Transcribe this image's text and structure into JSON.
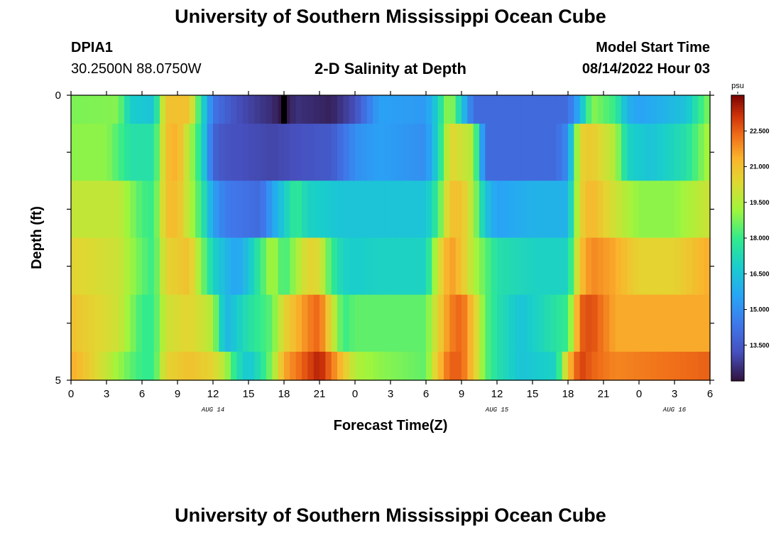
{
  "header": {
    "title": "University of Southern Mississippi Ocean Cube",
    "station_id": "DPIA1",
    "coordinates": "30.2500N  88.0750W",
    "plot_title": "2-D Salinity at Depth",
    "model_start_label": "Model Start Time",
    "model_start_value": "08/14/2022 Hour 03"
  },
  "footer": {
    "title": "University of Southern Mississippi Ocean Cube"
  },
  "chart_data": {
    "type": "heatmap",
    "title": "2-D Salinity at Depth",
    "xlabel": "Forecast Time(Z)",
    "ylabel": "Depth (ft)",
    "y_tick_labels": [
      "0",
      "5"
    ],
    "ylim": [
      0,
      5
    ],
    "x_tick_labels": [
      "0",
      "3",
      "6",
      "9",
      "12",
      "15",
      "18",
      "21",
      "0",
      "3",
      "6",
      "9",
      "12",
      "15",
      "18",
      "21",
      "0",
      "3",
      "6"
    ],
    "x_hours": [
      0,
      3,
      6,
      9,
      12,
      15,
      18,
      21,
      24,
      27,
      30,
      33,
      36,
      39,
      42,
      45,
      48,
      51,
      54
    ],
    "day_labels": [
      {
        "text": "AUG 14",
        "hour": 12
      },
      {
        "text": "AUG 15",
        "hour": 36
      },
      {
        "text": "AUG 16",
        "hour": 51
      }
    ],
    "depth_layers": [
      "0-0.5 ft",
      "0.5-1.5 ft",
      "1.5-2.5 ft",
      "2.5-3.5 ft",
      "3.5-4.5 ft",
      "4.5-5 ft"
    ],
    "colorbar": {
      "unit": "psu",
      "min": 12.0,
      "max": 24.0,
      "tick_labels": [
        "13.500",
        "15.000",
        "16.500",
        "18.000",
        "19.500",
        "21.000",
        "22.500"
      ],
      "tick_values": [
        13.5,
        15.0,
        16.5,
        18.0,
        19.5,
        21.0,
        22.5
      ]
    },
    "salinity_keyframes": [
      {
        "layer": "0-0.5 ft",
        "hours": [
          0,
          4,
          5,
          7,
          8,
          10,
          11,
          12,
          14,
          17,
          18,
          19,
          22,
          24,
          26,
          30,
          31,
          32,
          34,
          37,
          42,
          43,
          44,
          46,
          47,
          48,
          52,
          54
        ],
        "values": [
          18.8,
          18.9,
          16.8,
          16.5,
          21.0,
          21.0,
          17.5,
          14.3,
          13.2,
          12.5,
          12.0,
          12.6,
          12.3,
          13.2,
          15.5,
          15.3,
          17.0,
          19.5,
          14.0,
          14.0,
          14.0,
          16.0,
          19.0,
          18.0,
          16.0,
          15.5,
          16.5,
          19.0
        ]
      },
      {
        "layer": "0.5-1.5 ft",
        "hours": [
          0,
          3,
          5,
          7,
          8,
          9,
          11,
          12,
          13,
          17,
          22,
          24,
          26,
          30,
          31,
          32,
          34,
          35,
          41,
          42,
          43,
          44,
          46,
          47,
          49,
          52,
          54
        ],
        "values": [
          19.0,
          19.0,
          17.5,
          17.5,
          21.0,
          21.5,
          17.5,
          13.8,
          13.3,
          13.0,
          13.5,
          15.0,
          15.5,
          15.0,
          17.0,
          20.5,
          19.5,
          14.0,
          14.0,
          15.0,
          20.5,
          20.8,
          19.5,
          17.0,
          16.5,
          17.5,
          19.5
        ]
      },
      {
        "layer": "1.5-2.5 ft",
        "hours": [
          0,
          4,
          6,
          7,
          8,
          9,
          11,
          12,
          13,
          16,
          17,
          19,
          20,
          23,
          26,
          30,
          31,
          32,
          33,
          34,
          35,
          36,
          39,
          42,
          43,
          44,
          46,
          48,
          51,
          54
        ],
        "values": [
          19.8,
          19.8,
          18.2,
          18.0,
          21.0,
          21.2,
          18.0,
          15.5,
          14.5,
          14.0,
          15.5,
          18.0,
          17.0,
          16.5,
          16.5,
          16.5,
          18.0,
          21.0,
          21.0,
          19.5,
          16.5,
          15.5,
          16.0,
          16.0,
          20.5,
          21.3,
          20.0,
          19.0,
          19.0,
          20.0
        ]
      },
      {
        "layer": "2.5-3.5 ft",
        "hours": [
          0,
          4,
          6,
          7,
          8,
          10,
          11,
          12,
          14,
          15,
          16,
          17,
          18,
          20,
          21,
          22,
          23,
          24,
          26,
          30,
          31,
          32,
          33,
          34,
          36,
          39,
          42,
          43,
          44,
          46,
          48,
          51,
          54
        ],
        "values": [
          20.5,
          20.0,
          18.5,
          18.0,
          20.5,
          21.0,
          19.0,
          17.0,
          15.5,
          16.5,
          18.0,
          19.5,
          18.0,
          20.5,
          20.3,
          18.0,
          17.0,
          16.8,
          17.0,
          17.0,
          20.0,
          21.8,
          21.0,
          19.5,
          17.5,
          17.0,
          17.0,
          21.0,
          22.0,
          21.5,
          20.5,
          20.5,
          21.5
        ]
      },
      {
        "layer": "3.5-4.5 ft",
        "hours": [
          0,
          4,
          6,
          7,
          8,
          10,
          12,
          13,
          15,
          17,
          18,
          20,
          21,
          23,
          24,
          26,
          30,
          31,
          32,
          33,
          34,
          35,
          36,
          38,
          42,
          43,
          44,
          46,
          54
        ],
        "values": [
          21.0,
          20.0,
          18.0,
          18.0,
          20.0,
          20.5,
          19.5,
          16.0,
          17.5,
          18.5,
          20.5,
          22.0,
          22.5,
          18.0,
          18.5,
          18.5,
          18.5,
          20.5,
          22.0,
          22.5,
          21.0,
          18.5,
          17.5,
          16.5,
          18.0,
          22.5,
          22.8,
          21.5,
          21.5
        ]
      },
      {
        "layer": "4.5-5 ft",
        "hours": [
          0,
          2,
          5,
          6,
          7,
          8,
          10,
          12,
          13,
          14,
          15,
          16,
          17,
          18,
          20,
          21,
          23,
          24,
          26,
          30,
          31,
          32,
          33,
          34,
          35,
          36,
          38,
          41,
          42,
          43,
          44,
          46,
          54
        ],
        "values": [
          21.5,
          20.5,
          18.5,
          18.0,
          18.0,
          20.5,
          21.0,
          20.5,
          19.5,
          17.5,
          16.5,
          17.5,
          19.0,
          21.5,
          22.8,
          23.5,
          21.0,
          19.5,
          19.0,
          18.5,
          21.0,
          22.5,
          22.5,
          21.0,
          18.5,
          17.5,
          16.5,
          17.0,
          21.0,
          23.0,
          22.5,
          22.0,
          22.5
        ]
      }
    ],
    "annotations": [
      "black marker at 0-0.5 ft, hour 18"
    ]
  }
}
